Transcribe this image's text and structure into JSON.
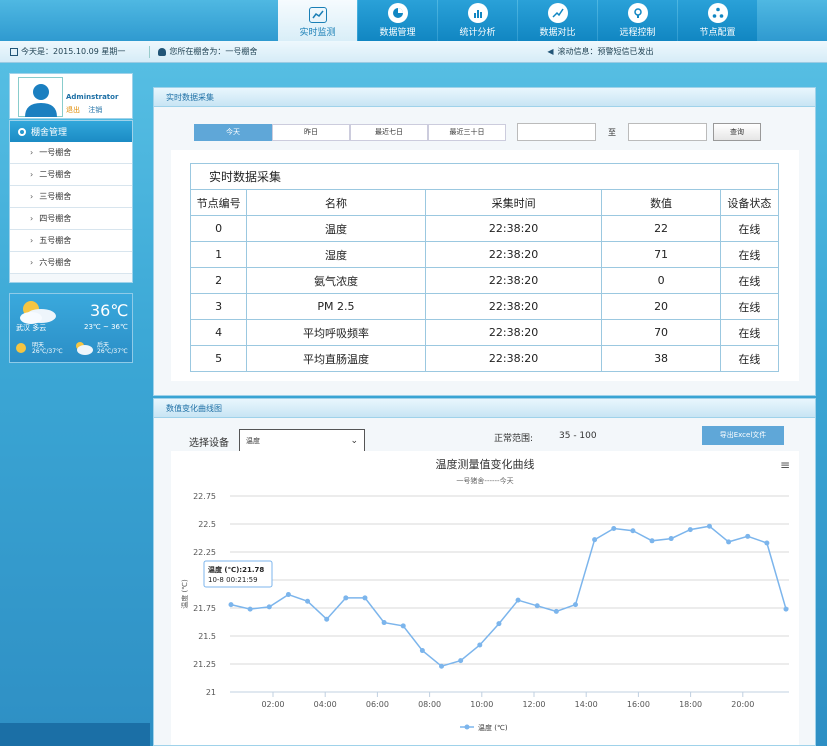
{
  "nav": {
    "items": [
      {
        "label": "实时监测",
        "icon": "monitor-icon"
      },
      {
        "label": "数据管理",
        "icon": "pie-chart-icon"
      },
      {
        "label": "统计分析",
        "icon": "bar-chart-icon"
      },
      {
        "label": "数据对比",
        "icon": "trend-chart-icon"
      },
      {
        "label": "远程控制",
        "icon": "control-icon"
      },
      {
        "label": "节点配置",
        "icon": "network-icon"
      }
    ]
  },
  "info": {
    "date": "今天是：2015.10.09 星期一",
    "barn": "您所在棚舍为：一号棚舍",
    "scroll": "滚动信息：预警短信已发出"
  },
  "user": {
    "name": "Adminstrator",
    "logout": "退出",
    "cancel": "注销"
  },
  "side": {
    "title": "棚舍管理",
    "items": [
      "一号棚舍",
      "二号棚舍",
      "三号棚舍",
      "四号棚舍",
      "五号棚舍",
      "六号棚舍"
    ]
  },
  "weather": {
    "temp": "36℃",
    "range": "23℃ ~ 36℃",
    "city": "武汉  多云",
    "tomorrow_label": "明天",
    "tomorrow_range": "26℃/37℃",
    "after_label": "后天",
    "after_range": "26℃/37℃"
  },
  "realtime": {
    "title": "实时数据采集",
    "filters": [
      "今天",
      "昨日",
      "最近七日",
      "最近三十日"
    ],
    "to_label": "至",
    "query": "查询",
    "table_caption": "实时数据采集",
    "headers": [
      "节点编号",
      "名称",
      "采集时间",
      "数值",
      "设备状态"
    ],
    "rows": [
      [
        "0",
        "温度",
        "22:38:20",
        "22",
        "在线"
      ],
      [
        "1",
        "湿度",
        "22:38:20",
        "71",
        "在线"
      ],
      [
        "2",
        "氨气浓度",
        "22:38:20",
        "0",
        "在线"
      ],
      [
        "3",
        "PM 2.5",
        "22:38:20",
        "20",
        "在线"
      ],
      [
        "4",
        "平均呼吸频率",
        "22:38:20",
        "70",
        "在线"
      ],
      [
        "5",
        "平均直肠温度",
        "22:38:20",
        "38",
        "在线"
      ]
    ]
  },
  "curve": {
    "title": "数值变化曲线图",
    "select_label": "选择设备",
    "select_value": "温度",
    "range_label": "正常范围:",
    "range_value": "35 - 100",
    "export": "导出Excel文件"
  },
  "chart_data": {
    "type": "line",
    "title": "温度测量值变化曲线",
    "subtitle": "一号猪舍------今天",
    "ylabel": "温度 (℃)",
    "ylim": [
      21,
      22.75
    ],
    "yticks": [
      "21",
      "21.25",
      "21.5",
      "21.75",
      "22",
      "22.25",
      "22.5",
      "22.75"
    ],
    "xticks": [
      "02:00",
      "04:00",
      "06:00",
      "08:00",
      "10:00",
      "12:00",
      "14:00",
      "16:00",
      "18:00",
      "20:00"
    ],
    "series": [
      {
        "name": "温度 (℃)",
        "color": "#7cb5ec",
        "values": [
          21.78,
          21.74,
          21.76,
          21.87,
          21.81,
          21.65,
          21.84,
          21.84,
          21.62,
          21.59,
          21.37,
          21.23,
          21.28,
          21.42,
          21.61,
          21.82,
          21.77,
          21.72,
          21.78,
          22.36,
          22.46,
          22.44,
          22.35,
          22.37,
          22.45,
          22.48,
          22.34,
          22.39,
          22.33,
          21.74
        ]
      }
    ],
    "tooltip": {
      "line1": "温度 (℃):21.78",
      "line2": "10-8 00:21:59"
    },
    "grid": true,
    "legend": "bottom"
  }
}
